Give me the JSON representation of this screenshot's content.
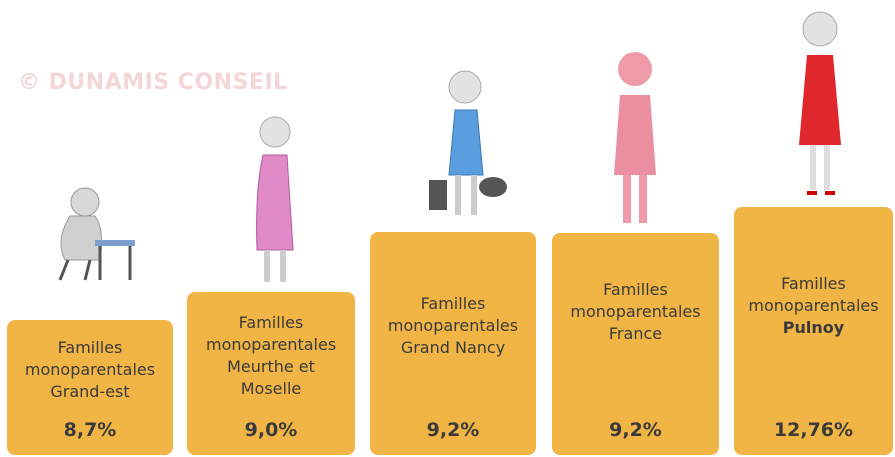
{
  "watermark": "© DUNAMIS CONSEIL",
  "items": [
    {
      "label": "Familles monoparentales",
      "place": "Grand-est",
      "value": "8,7%"
    },
    {
      "label": "Familles monoparentales",
      "place": "Meurthe et Moselle",
      "value": "9,0%"
    },
    {
      "label": "Familles monoparentales",
      "place": "Grand Nancy",
      "value": "9,2%"
    },
    {
      "label": "Familles monoparentales",
      "place": "France",
      "value": "9,2%"
    },
    {
      "label": "Familles monoparentales",
      "place": "Pulnoy",
      "value": "12,76%"
    }
  ]
}
